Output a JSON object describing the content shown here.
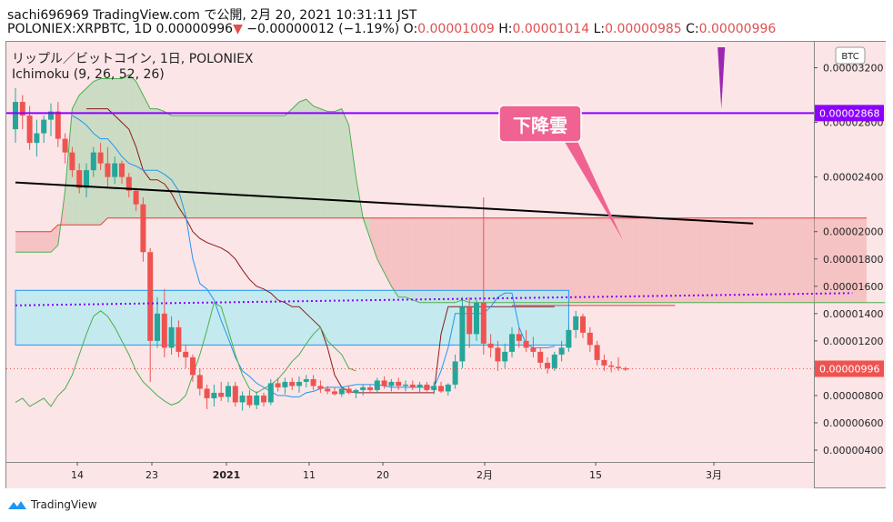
{
  "header": {
    "line1": "sachi696969 TradingView.com で公開, 2月 20, 2021 10:31:11 JST",
    "symbol_line_prefix": "POLONIEX:XRPBTC, 1D 0.00000996",
    "change_arrow": "▼",
    "change_text": " −0.00000012 (−1.19%)",
    "o_label": " O:",
    "o_value": "0.00001009",
    "h_label": " H:",
    "h_value": "0.00001014",
    "l_label": " L:",
    "l_value": "0.00000985",
    "c_label": " C:",
    "c_value": "0.00000996"
  },
  "legend": {
    "title": "リップル／ビットコイン, 1日, POLONIEX",
    "indicator": "Ichimoku (9, 26, 52, 26)"
  },
  "footer": {
    "brand": "TradingView"
  },
  "annotation": {
    "label": "下降雲"
  },
  "currency_badge": "BTC",
  "price_tags": [
    {
      "label": "0.00002868",
      "color": "#8b00ff"
    },
    {
      "label": "0.00000996",
      "color": "#ef5350"
    }
  ],
  "colors": {
    "up": "#26a69a",
    "down": "#ef5350",
    "tenkan": "#2196f3",
    "kijun": "#8b1a1a",
    "span_a": "#4caf50",
    "span_b": "#e53935",
    "chikou": "#4caf50",
    "trendline": "#000000",
    "hline": "#8b00ff",
    "dotted": "#8b00ff",
    "rect_fill": "#b2ebf2",
    "rect_border": "#2196f3",
    "callout": "#f06292"
  },
  "chart_data": {
    "type": "candlestick",
    "symbol": "POLONIEX:XRPBTC",
    "interval": "1D",
    "y_ticks": [
      "0.00003200",
      "0.00002800",
      "0.00002400",
      "0.00002000",
      "0.00001800",
      "0.00001600",
      "0.00001400",
      "0.00001200",
      "0.00001000",
      "0.00000800",
      "0.00000600",
      "0.00000400"
    ],
    "x_ticks": [
      "14",
      "23",
      "2021",
      "11",
      "20",
      "2月",
      "15",
      "3月"
    ],
    "ylim": [
      3.6e-06,
      3.35e-05
    ],
    "candles": [
      [
        2.75e-05,
        3.05e-05,
        2.65e-05,
        2.95e-05
      ],
      [
        2.95e-05,
        3e-05,
        2.75e-05,
        2.85e-05
      ],
      [
        2.85e-05,
        2.92e-05,
        2.6e-05,
        2.65e-05
      ],
      [
        2.65e-05,
        2.82e-05,
        2.55e-05,
        2.72e-05
      ],
      [
        2.72e-05,
        2.85e-05,
        2.65e-05,
        2.82e-05
      ],
      [
        2.82e-05,
        2.94e-05,
        2.7e-05,
        2.88e-05
      ],
      [
        2.88e-05,
        2.95e-05,
        2.62e-05,
        2.68e-05
      ],
      [
        2.68e-05,
        2.72e-05,
        2.5e-05,
        2.58e-05
      ],
      [
        2.58e-05,
        2.62e-05,
        2.4e-05,
        2.45e-05
      ],
      [
        2.45e-05,
        2.5e-05,
        2.28e-05,
        2.32e-05
      ],
      [
        2.32e-05,
        2.5e-05,
        2.25e-05,
        2.45e-05
      ],
      [
        2.45e-05,
        2.62e-05,
        2.4e-05,
        2.58e-05
      ],
      [
        2.58e-05,
        2.65e-05,
        2.45e-05,
        2.5e-05
      ],
      [
        2.5e-05,
        2.62e-05,
        2.32e-05,
        2.4e-05
      ],
      [
        2.4e-05,
        2.55e-05,
        2.35e-05,
        2.5e-05
      ],
      [
        2.5e-05,
        2.52e-05,
        2.35e-05,
        2.4e-05
      ],
      [
        2.4e-05,
        2.43e-05,
        2.25e-05,
        2.3e-05
      ],
      [
        2.3e-05,
        2.32e-05,
        2.15e-05,
        2.2e-05
      ],
      [
        2.2e-05,
        2.25e-05,
        1.78e-05,
        1.85e-05
      ],
      [
        1.85e-05,
        1.88e-05,
        9e-06,
        1.2e-05
      ],
      [
        1.2e-05,
        1.52e-05,
        1.15e-05,
        1.4e-05
      ],
      [
        1.4e-05,
        1.58e-05,
        1.08e-05,
        1.15e-05
      ],
      [
        1.15e-05,
        1.38e-05,
        1.1e-05,
        1.3e-05
      ],
      [
        1.3e-05,
        1.35e-05,
        1.08e-05,
        1.12e-05
      ],
      [
        1.12e-05,
        1.17e-05,
        1e-05,
        1.08e-05
      ],
      [
        1.08e-05,
        1.1e-05,
        9e-06,
        9.5e-06
      ],
      [
        9.5e-06,
        1e-05,
        8e-06,
        8.5e-06
      ],
      [
        8.5e-06,
        8.8e-06,
        7e-06,
        7.8e-06
      ],
      [
        7.8e-06,
        8.8e-06,
        7.2e-06,
        8.2e-06
      ],
      [
        8.2e-06,
        9e-06,
        7.6e-06,
        7.9e-06
      ],
      [
        7.9e-06,
        9e-06,
        7.5e-06,
        8.7e-06
      ],
      [
        8.7e-06,
        9e-06,
        7.2e-06,
        7.5e-06
      ],
      [
        7.5e-06,
        8.3e-06,
        6.9e-06,
        8e-06
      ],
      [
        8e-06,
        8.4e-06,
        7.1e-06,
        7.3e-06
      ],
      [
        7.3e-06,
        8.3e-06,
        7e-06,
        8e-06
      ],
      [
        8e-06,
        8.2e-06,
        7.2e-06,
        7.5e-06
      ],
      [
        7.5e-06,
        9.2e-06,
        7.3e-06,
        8.9e-06
      ],
      [
        8.9e-06,
        9.3e-06,
        8.3e-06,
        8.6e-06
      ],
      [
        8.6e-06,
        9.3e-06,
        8.1e-06,
        9e-06
      ],
      [
        9e-06,
        9.3e-06,
        8.4e-06,
        8.7e-06
      ],
      [
        8.7e-06,
        9.4e-06,
        8.2e-06,
        9e-06
      ],
      [
        9e-06,
        9.5e-06,
        8.6e-06,
        9.2e-06
      ],
      [
        9.2e-06,
        9.5e-06,
        8.4e-06,
        8.7e-06
      ],
      [
        8.7e-06,
        9.1e-06,
        8.2e-06,
        8.5e-06
      ],
      [
        8.5e-06,
        8.7e-06,
        8.1e-06,
        8.3e-06
      ],
      [
        8.3e-06,
        8.6e-06,
        8e-06,
        8.1e-06
      ],
      [
        8.1e-06,
        8.7e-06,
        7.9e-06,
        8.5e-06
      ],
      [
        8.5e-06,
        8.7e-06,
        8.1e-06,
        8.2e-06
      ],
      [
        8.2e-06,
        8.5e-06,
        7.8e-06,
        8.4e-06
      ],
      [
        8.4e-06,
        8.8e-06,
        8e-06,
        8.6e-06
      ],
      [
        8.6e-06,
        8.8e-06,
        8.2e-06,
        8.4e-06
      ],
      [
        8.4e-06,
        9.3e-06,
        8.2e-06,
        9.1e-06
      ],
      [
        9.1e-06,
        9.4e-06,
        8.5e-06,
        8.7e-06
      ],
      [
        8.7e-06,
        9.2e-06,
        8.3e-06,
        9e-06
      ],
      [
        9e-06,
        9.3e-06,
        8.4e-06,
        8.7e-06
      ],
      [
        8.7e-06,
        9.1e-06,
        8.3e-06,
        8.8e-06
      ],
      [
        8.8e-06,
        9.1e-06,
        8.4e-06,
        8.6e-06
      ],
      [
        8.6e-06,
        9e-06,
        8.2e-06,
        8.8e-06
      ],
      [
        8.8e-06,
        9e-06,
        8.3e-06,
        8.4e-06
      ],
      [
        8.4e-06,
        9e-06,
        8.1e-06,
        8.7e-06
      ],
      [
        8.7e-06,
        9e-06,
        8.2e-06,
        8.3e-06
      ],
      [
        8.3e-06,
        8.9e-06,
        8e-06,
        8.8e-06
      ],
      [
        8.8e-06,
        1.1e-05,
        8.5e-06,
        1.05e-05
      ],
      [
        1.05e-05,
        1.52e-05,
        1e-05,
        1.45e-05
      ],
      [
        1.45e-05,
        1.52e-05,
        1.15e-05,
        1.25e-05
      ],
      [
        1.25e-05,
        1.5e-05,
        1.2e-05,
        1.48e-05
      ],
      [
        1.48e-05,
        2.25e-05,
        1.1e-05,
        1.18e-05
      ],
      [
        1.18e-05,
        1.25e-05,
        1.08e-05,
        1.15e-05
      ],
      [
        1.15e-05,
        1.2e-05,
        9.8e-06,
        1.05e-05
      ],
      [
        1.05e-05,
        1.18e-05,
        1e-05,
        1.12e-05
      ],
      [
        1.12e-05,
        1.3e-05,
        1.08e-05,
        1.25e-05
      ],
      [
        1.25e-05,
        1.3e-05,
        1.15e-05,
        1.2e-05
      ],
      [
        1.2e-05,
        1.28e-05,
        1.12e-05,
        1.15e-05
      ],
      [
        1.15e-05,
        1.23e-05,
        1.08e-05,
        1.12e-05
      ],
      [
        1.12e-05,
        1.15e-05,
        1e-05,
        1.04e-05
      ],
      [
        1.04e-05,
        1.08e-05,
        9.6e-06,
        1e-05
      ],
      [
        1e-05,
        1.12e-05,
        9.8e-06,
        1.1e-05
      ],
      [
        1.1e-05,
        1.2e-05,
        1.05e-05,
        1.15e-05
      ],
      [
        1.15e-05,
        1.32e-05,
        1.12e-05,
        1.28e-05
      ],
      [
        1.28e-05,
        1.42e-05,
        1.22e-05,
        1.38e-05
      ],
      [
        1.38e-05,
        1.4e-05,
        1.22e-05,
        1.26e-05
      ],
      [
        1.26e-05,
        1.3e-05,
        1.12e-05,
        1.17e-05
      ],
      [
        1.17e-05,
        1.2e-05,
        1.02e-05,
        1.06e-05
      ],
      [
        1.06e-05,
        1.1e-05,
        9.8e-06,
        1.02e-05
      ],
      [
        1.02e-05,
        1.05e-05,
        9.7e-06,
        1.01e-05
      ],
      [
        1.01e-05,
        1.08e-05,
        9.8e-06,
        1e-05
      ],
      [
        1e-05,
        1.01e-05,
        9.8e-06,
        9.9e-06
      ]
    ],
    "ichimoku": {
      "tenkan": [
        2.85e-05,
        2.82e-05,
        2.78e-05,
        2.72e-05,
        2.68e-05,
        2.68e-05,
        2.62e-05,
        2.55e-05,
        2.5e-05,
        2.48e-05,
        2.45e-05,
        2.45e-05,
        2.45e-05,
        2.42e-05,
        2.38e-05,
        2.3e-05,
        2.12e-05,
        1.8e-05,
        1.62e-05,
        1.58e-05,
        1.5e-05,
        1.35e-05,
        1.22e-05,
        1.08e-05,
        9.8e-06,
        9.4e-06,
        8.9e-06,
        8.6e-06,
        8.3e-06,
        8e-06,
        8e-06,
        7.9e-06,
        7.9e-06,
        8.2e-06,
        8.3e-06,
        8.5e-06,
        8.6e-06,
        8.6e-06,
        8.6e-06,
        8.7e-06,
        8.8e-06,
        8.8e-06,
        8.8e-06,
        8.8e-06,
        8.7e-06,
        8.6e-06,
        8.6e-06,
        8.6e-06,
        8.6e-06,
        8.6e-06,
        8.6e-06,
        8.6e-06,
        9.8e-06,
        1.15e-05,
        1.4e-05,
        1.4e-05,
        1.4e-05,
        1.4e-05,
        1.4e-05,
        1.45e-05,
        1.52e-05,
        1.55e-05,
        1.55e-05,
        1.3e-05,
        1.18e-05,
        1.15e-05,
        1.15e-05,
        1.15e-05,
        1.16e-05
      ],
      "kijun": [
        2.9e-05,
        2.9e-05,
        2.9e-05,
        2.9e-05,
        2.85e-05,
        2.8e-05,
        2.75e-05,
        2.62e-05,
        2.45e-05,
        2.38e-05,
        2.38e-05,
        2.35e-05,
        2.28e-05,
        2.18e-05,
        2.1e-05,
        2e-05,
        1.95e-05,
        1.92e-05,
        1.9e-05,
        1.88e-05,
        1.85e-05,
        1.8e-05,
        1.72e-05,
        1.65e-05,
        1.6e-05,
        1.58e-05,
        1.55e-05,
        1.5e-05,
        1.48e-05,
        1.45e-05,
        1.45e-05,
        1.4e-05,
        1.35e-05,
        1.3e-05,
        1.15e-05,
        9.5e-06,
        8.6e-06,
        8.3e-06,
        8.2e-06,
        8.2e-06,
        8.2e-06,
        8.2e-06,
        8.2e-06,
        8.2e-06,
        8.2e-06,
        8.2e-06,
        8.2e-06,
        8.2e-06,
        8.2e-06,
        8.2e-06,
        1.25e-05,
        1.45e-05,
        1.45e-05,
        1.45e-05,
        1.45e-05,
        1.45e-05,
        1.45e-05,
        1.45e-05,
        1.45e-05,
        1.45e-05,
        1.45e-05,
        1.45e-05,
        1.45e-05,
        1.45e-05,
        1.45e-05,
        1.45e-05,
        1.45e-05
      ],
      "chikou": [
        7.5e-06,
        7.8e-06,
        7.2e-06,
        7.5e-06,
        7.8e-06,
        7.2e-06,
        8e-06,
        8.5e-06,
        9.5e-06,
        1.1e-05,
        1.25e-05,
        1.38e-05,
        1.42e-05,
        1.38e-05,
        1.3e-05,
        1.2e-05,
        1.1e-05,
        9.8e-06,
        9e-06,
        8.5e-06,
        8e-06,
        7.6e-06,
        7.3e-06,
        7.5e-06,
        8e-06,
        9.5e-06,
        1.1e-05,
        1.28e-05,
        1.48e-05,
        1.45e-05,
        1.28e-05,
        1.1e-05,
        9.5e-06,
        8.5e-06,
        8.2e-06,
        8.5e-06,
        8.8e-06,
        9.2e-06,
        9.8e-06,
        1.05e-05,
        1.1e-05,
        1.18e-05,
        1.25e-05,
        1.3e-05,
        1.2e-05,
        1.15e-05,
        1.1e-05,
        1e-05,
        9.8e-06
      ],
      "span_a": [
        1.85e-05,
        1.85e-05,
        1.85e-05,
        1.85e-05,
        1.85e-05,
        1.85e-05,
        1.9e-05,
        2.3e-05,
        2.9e-05,
        3e-05,
        3.05e-05,
        3.1e-05,
        3.12e-05,
        3.12e-05,
        3.12e-05,
        3.12e-05,
        3.15e-05,
        3.1e-05,
        3e-05,
        2.9e-05,
        2.9e-05,
        2.88e-05,
        2.85e-05,
        2.85e-05,
        2.85e-05,
        2.85e-05,
        2.85e-05,
        2.85e-05,
        2.85e-05,
        2.85e-05,
        2.85e-05,
        2.85e-05,
        2.85e-05,
        2.85e-05,
        2.85e-05,
        2.85e-05,
        2.85e-05,
        2.85e-05,
        2.85e-05,
        2.9e-05,
        2.95e-05,
        2.97e-05,
        2.92e-05,
        2.9e-05,
        2.88e-05,
        2.88e-05,
        2.9e-05,
        2.78e-05,
        2.4e-05,
        2.1e-05,
        1.95e-05,
        1.8e-05,
        1.7e-05,
        1.6e-05,
        1.52e-05,
        1.52e-05,
        1.5e-05,
        1.48e-05,
        1.48e-05,
        1.48e-05,
        1.48e-05,
        1.48e-05,
        1.48e-05,
        1.5e-05,
        1.48e-05,
        1.48e-05,
        1.48e-05,
        1.48e-05,
        1.48e-05,
        1.48e-05,
        1.48e-05,
        1.48e-05,
        1.48e-05,
        1.48e-05,
        1.48e-05,
        1.48e-05,
        1.48e-05,
        1.48e-05,
        1.48e-05,
        1.48e-05,
        1.48e-05,
        1.48e-05,
        1.48e-05,
        1.48e-05,
        1.48e-05,
        1.48e-05,
        1.48e-05,
        1.48e-05,
        1.48e-05,
        1.48e-05,
        1.48e-05,
        1.48e-05,
        1.48e-05,
        1.48e-05,
        1.48e-05,
        1.48e-05,
        1.48e-05,
        1.48e-05,
        1.48e-05,
        1.48e-05,
        1.48e-05,
        1.48e-05,
        1.48e-05,
        1.48e-05,
        1.48e-05,
        1.48e-05,
        1.48e-05,
        1.48e-05,
        1.48e-05,
        1.48e-05,
        1.48e-05,
        1.48e-05,
        1.48e-05,
        1.48e-05,
        1.48e-05,
        1.48e-05,
        1.48e-05,
        1.48e-05,
        1.48e-05,
        1.48e-05,
        1.48e-05,
        1.48e-05,
        1.48e-05,
        1.48e-05,
        1.48e-05,
        1.48e-05
      ],
      "span_b": [
        2e-05,
        2e-05,
        2e-05,
        2e-05,
        2e-05,
        2e-05,
        2.05e-05,
        2.05e-05,
        2.05e-05,
        2.05e-05,
        2.05e-05,
        2.05e-05,
        2.05e-05,
        2.1e-05,
        2.1e-05,
        2.1e-05,
        2.1e-05,
        2.1e-05,
        2.1e-05,
        2.1e-05,
        2.1e-05,
        2.1e-05,
        2.1e-05,
        2.1e-05,
        2.1e-05,
        2.1e-05,
        2.1e-05,
        2.1e-05,
        2.1e-05,
        2.1e-05,
        2.1e-05,
        2.1e-05,
        2.1e-05,
        2.1e-05,
        2.1e-05,
        2.1e-05,
        2.1e-05,
        2.1e-05,
        2.1e-05,
        2.1e-05,
        2.1e-05,
        2.1e-05,
        2.1e-05,
        2.1e-05,
        2.1e-05,
        2.1e-05,
        2.1e-05,
        2.1e-05,
        2.1e-05,
        2.1e-05,
        2.1e-05,
        2.1e-05,
        2.1e-05,
        2.1e-05,
        2.1e-05,
        2.1e-05,
        2.1e-05,
        2.1e-05,
        2.1e-05,
        2.1e-05,
        2.1e-05,
        2.1e-05,
        2.1e-05,
        2.1e-05,
        2.1e-05,
        2.1e-05,
        2.1e-05,
        2.1e-05,
        2.1e-05,
        2.1e-05,
        2.1e-05,
        2.1e-05,
        2.1e-05,
        2.1e-05,
        2.1e-05,
        2.1e-05,
        2.1e-05,
        2.1e-05,
        2.1e-05,
        2.1e-05,
        2.1e-05,
        2.1e-05,
        2.1e-05,
        2.1e-05,
        2.1e-05,
        2.1e-05,
        2.1e-05,
        2.1e-05,
        2.1e-05,
        2.1e-05,
        2.1e-05,
        2.1e-05,
        2.1e-05,
        2.1e-05,
        2.1e-05,
        2.1e-05,
        2.1e-05,
        2.1e-05,
        2.1e-05,
        2.1e-05,
        2.1e-05,
        2.1e-05,
        2.1e-05,
        2.1e-05,
        2.1e-05,
        2.1e-05,
        2.1e-05,
        2.1e-05,
        2.1e-05,
        2.1e-05,
        2.1e-05,
        2.1e-05,
        2.1e-05,
        2.1e-05,
        2.1e-05,
        2.1e-05,
        2.1e-05,
        2.1e-05,
        2.1e-05,
        2.1e-05,
        2.1e-05
      ]
    },
    "drawings": {
      "horizontal_line": 2.868e-05,
      "trendline": [
        [
          0,
          2.36e-05
        ],
        [
          104,
          2.06e-05
        ]
      ],
      "dotted_line": [
        [
          0,
          1.46e-05
        ],
        [
          118,
          1.55e-05
        ]
      ],
      "rectangle": {
        "x0": 0,
        "x1": 78,
        "y0": 1.17e-05,
        "y1": 1.57e-05
      },
      "long_position_line": {
        "x0": 70,
        "x1": 93,
        "y": 1.46e-05
      },
      "current_price_line": 9.96e-06
    }
  }
}
